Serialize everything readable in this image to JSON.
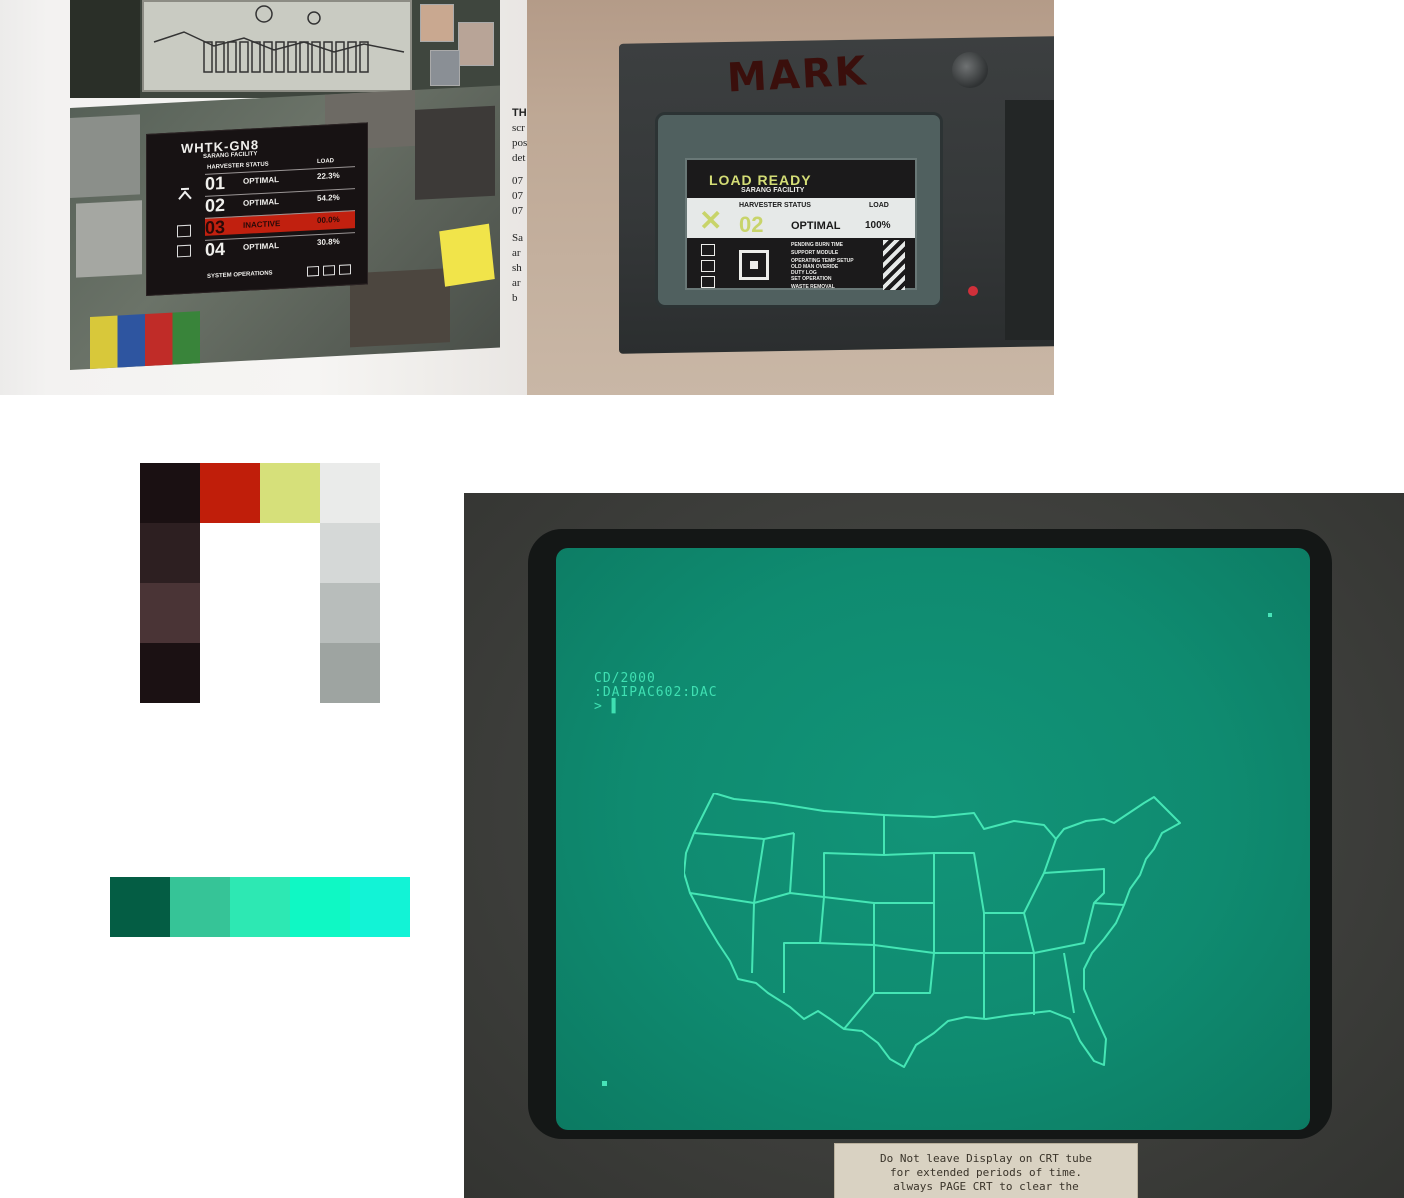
{
  "book_photo": {
    "screen_title": "WHTK-GN8",
    "screen_subtitle": "SARANG FACILITY",
    "col_status": "HARVESTER STATUS",
    "col_load": "LOAD",
    "rows": [
      {
        "num": "01",
        "status": "OPTIMAL",
        "load": "22.3%"
      },
      {
        "num": "02",
        "status": "OPTIMAL",
        "load": "54.2%"
      },
      {
        "num": "03",
        "status": "INACTIVE",
        "load": "00.0%"
      },
      {
        "num": "04",
        "status": "OPTIMAL",
        "load": "30.8%"
      }
    ],
    "system_ops": "SYSTEM OPERATIONS",
    "side_text": {
      "heading": "TH",
      "lines": [
        "scr",
        "pos",
        "det",
        "",
        "07",
        "07",
        "07",
        "",
        "Sa",
        "ar",
        "sh",
        "ar",
        "b"
      ]
    }
  },
  "device_photo": {
    "marker_label": "MARK",
    "title": "LOAD READY",
    "subtitle": "SARANG FACILITY",
    "col_status": "HARVESTER STATUS",
    "col_load": "LOAD",
    "num": "02",
    "status": "OPTIMAL",
    "load": "100%",
    "tabs": "PENDING     BURN TIME",
    "menu": [
      "SUPPORT MODULE",
      "OPERATING TEMP SETUP",
      "OLD MAN OVERIDE",
      "DUTY LOG",
      "SET OPERATION",
      "WASTE REMOVAL"
    ]
  },
  "palette_dark": {
    "colors": [
      "#1a1012",
      "#c01e0a",
      "#d6e07a",
      "#eaebea",
      "#2d1f21",
      "#d5d8d7",
      "#4a3436",
      "#b8bdbb",
      "#1b1113",
      "#9ea4a1"
    ]
  },
  "palette_green": {
    "colors": [
      "#045d44",
      "#36c497",
      "#2de8b3",
      "#0ff8c4",
      "#12f3d6"
    ]
  },
  "crt_photo": {
    "line1": "CD/2000",
    "line2": ":DAIPAC602:DAC",
    "line3": "> ▌",
    "note": [
      "Do Not leave Display on CRT tube",
      "for extended periods of time.",
      "always PAGE CRT to clear the"
    ],
    "phosphor_color": "#3fe0b2"
  }
}
